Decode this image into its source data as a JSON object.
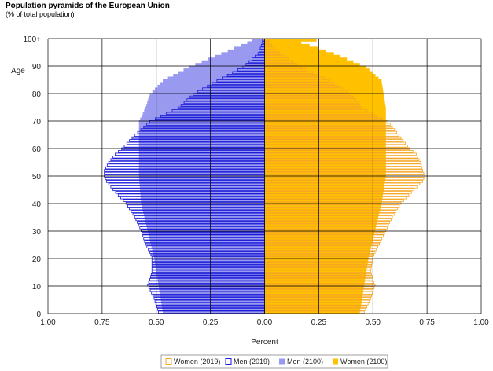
{
  "chart_data": {
    "type": "bar",
    "orientation": "horizontal",
    "title": "Population pyramids of the European Union",
    "subtitle": "(% of total population)",
    "xlabel": "Percent",
    "ylabel": "Age",
    "xlim": [
      -1.0,
      1.0
    ],
    "ylim": [
      0,
      100
    ],
    "x_ticks": [
      "1.00",
      "0.75",
      "0.50",
      "0.25",
      "0.00",
      "0.25",
      "0.50",
      "0.75",
      "1.00"
    ],
    "y_ticks": [
      "0",
      "10",
      "20",
      "30",
      "40",
      "50",
      "60",
      "70",
      "80",
      "90",
      "100+"
    ],
    "grid": true,
    "legend_position": "bottom",
    "colors": {
      "women_2019": "#F5A623",
      "men_2019": "#1A1AD8",
      "men_2100": "#9999F0",
      "women_2100": "#FFC000"
    },
    "series": [
      {
        "name": "Women (2019)",
        "style": "outline",
        "side": "right",
        "anchors": [
          [
            0,
            0.46
          ],
          [
            5,
            0.49
          ],
          [
            10,
            0.51
          ],
          [
            12,
            0.5
          ],
          [
            15,
            0.49
          ],
          [
            20,
            0.5
          ],
          [
            22,
            0.51
          ],
          [
            25,
            0.53
          ],
          [
            30,
            0.56
          ],
          [
            35,
            0.59
          ],
          [
            40,
            0.63
          ],
          [
            45,
            0.69
          ],
          [
            48,
            0.73
          ],
          [
            50,
            0.74
          ],
          [
            52,
            0.73
          ],
          [
            55,
            0.72
          ],
          [
            58,
            0.7
          ],
          [
            60,
            0.67
          ],
          [
            65,
            0.62
          ],
          [
            70,
            0.57
          ],
          [
            72,
            0.52
          ],
          [
            75,
            0.45
          ],
          [
            80,
            0.4
          ],
          [
            85,
            0.3
          ],
          [
            90,
            0.17
          ],
          [
            95,
            0.07
          ],
          [
            99,
            0.02
          ],
          [
            100,
            0.02
          ]
        ]
      },
      {
        "name": "Men (2019)",
        "style": "outline",
        "side": "left",
        "anchors": [
          [
            0,
            0.49
          ],
          [
            5,
            0.51
          ],
          [
            10,
            0.54
          ],
          [
            12,
            0.53
          ],
          [
            15,
            0.52
          ],
          [
            20,
            0.52
          ],
          [
            22,
            0.53
          ],
          [
            25,
            0.55
          ],
          [
            30,
            0.57
          ],
          [
            35,
            0.6
          ],
          [
            40,
            0.64
          ],
          [
            45,
            0.7
          ],
          [
            48,
            0.73
          ],
          [
            50,
            0.74
          ],
          [
            52,
            0.74
          ],
          [
            55,
            0.72
          ],
          [
            58,
            0.69
          ],
          [
            60,
            0.66
          ],
          [
            65,
            0.6
          ],
          [
            70,
            0.53
          ],
          [
            72,
            0.48
          ],
          [
            75,
            0.4
          ],
          [
            80,
            0.33
          ],
          [
            85,
            0.22
          ],
          [
            90,
            0.1
          ],
          [
            95,
            0.03
          ],
          [
            99,
            0.01
          ],
          [
            100,
            0.01
          ]
        ]
      },
      {
        "name": "Men (2100)",
        "style": "fill",
        "side": "left",
        "anchors": [
          [
            0,
            0.47
          ],
          [
            10,
            0.49
          ],
          [
            20,
            0.51
          ],
          [
            30,
            0.54
          ],
          [
            40,
            0.57
          ],
          [
            50,
            0.58
          ],
          [
            60,
            0.58
          ],
          [
            65,
            0.58
          ],
          [
            70,
            0.58
          ],
          [
            75,
            0.55
          ],
          [
            80,
            0.53
          ],
          [
            85,
            0.47
          ],
          [
            90,
            0.35
          ],
          [
            95,
            0.2
          ],
          [
            99,
            0.08
          ],
          [
            100,
            0.06
          ]
        ]
      },
      {
        "name": "Women (2100)",
        "style": "fill",
        "side": "right",
        "anchors": [
          [
            0,
            0.44
          ],
          [
            10,
            0.46
          ],
          [
            20,
            0.48
          ],
          [
            30,
            0.51
          ],
          [
            40,
            0.54
          ],
          [
            50,
            0.56
          ],
          [
            60,
            0.56
          ],
          [
            65,
            0.56
          ],
          [
            70,
            0.56
          ],
          [
            75,
            0.56
          ],
          [
            80,
            0.55
          ],
          [
            85,
            0.54
          ],
          [
            90,
            0.47
          ],
          [
            95,
            0.32
          ],
          [
            99,
            0.17
          ],
          [
            100,
            0.24
          ]
        ]
      }
    ]
  }
}
